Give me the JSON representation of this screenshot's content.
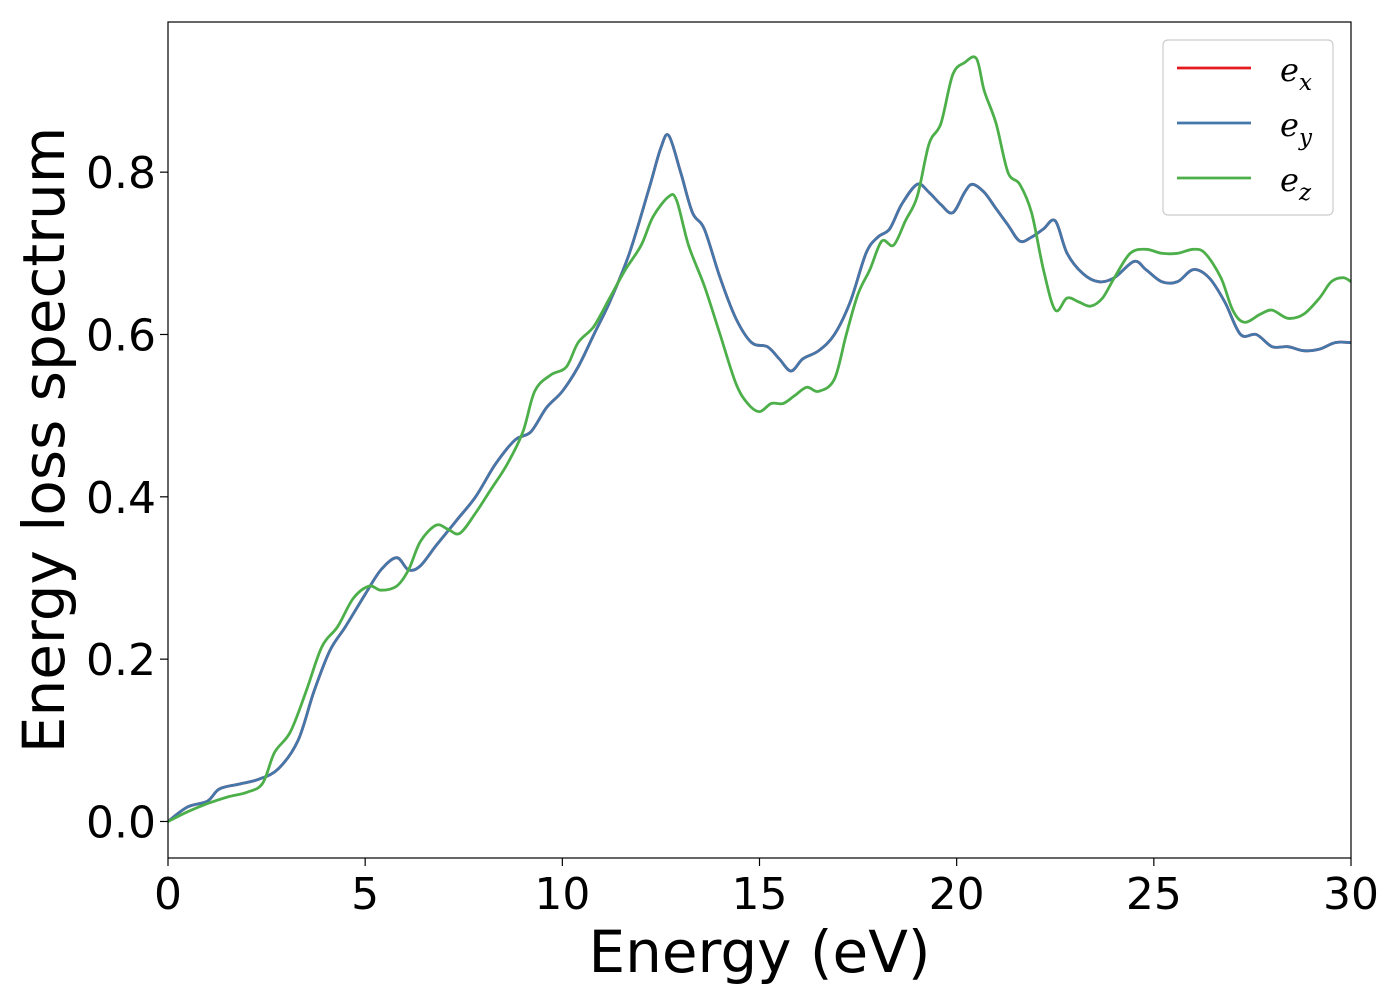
{
  "chart_data": {
    "type": "line",
    "xlabel": "Energy (eV)",
    "ylabel": "Energy loss spectrum",
    "xlim": [
      0,
      30
    ],
    "ylim": [
      -0.045,
      0.985
    ],
    "xticks": [
      {
        "value": 0,
        "label": "0"
      },
      {
        "value": 5,
        "label": "5"
      },
      {
        "value": 10,
        "label": "10"
      },
      {
        "value": 15,
        "label": "15"
      },
      {
        "value": 20,
        "label": "20"
      },
      {
        "value": 25,
        "label": "25"
      },
      {
        "value": 30,
        "label": "30"
      }
    ],
    "yticks": [
      {
        "value": 0.0,
        "label": "0.0"
      },
      {
        "value": 0.2,
        "label": "0.2"
      },
      {
        "value": 0.4,
        "label": "0.4"
      },
      {
        "value": 0.6,
        "label": "0.6"
      },
      {
        "value": 0.8,
        "label": "0.8"
      }
    ],
    "grid": false,
    "legend_position": "top-right",
    "series": [
      {
        "name": "e_x",
        "symbol": "e",
        "subscript": "x",
        "color": "#e41a1c",
        "x": [
          0,
          0.5,
          1,
          1.3,
          1.8,
          2.3,
          2.8,
          3.3,
          3.7,
          4.1,
          4.5,
          5,
          5.4,
          5.8,
          6.1,
          6.4,
          6.8,
          7.3,
          7.8,
          8.3,
          8.8,
          9.2,
          9.6,
          10,
          10.4,
          10.8,
          11.2,
          11.7,
          12.2,
          12.5,
          12.7,
          13,
          13.3,
          13.6,
          14,
          14.4,
          14.8,
          15.2,
          15.5,
          15.8,
          16.1,
          16.5,
          16.9,
          17.3,
          17.7,
          18,
          18.3,
          18.6,
          19,
          19.3,
          19.6,
          19.9,
          20.2,
          20.4,
          20.7,
          21,
          21.3,
          21.6,
          21.9,
          22.2,
          22.5,
          22.8,
          23.2,
          23.6,
          24,
          24.5,
          24.8,
          25.2,
          25.6,
          26,
          26.4,
          26.8,
          27.2,
          27.6,
          28,
          28.4,
          28.8,
          29.2,
          29.6,
          30
        ],
        "y": [
          0,
          0.018,
          0.025,
          0.04,
          0.046,
          0.052,
          0.065,
          0.1,
          0.16,
          0.21,
          0.24,
          0.28,
          0.31,
          0.325,
          0.31,
          0.315,
          0.34,
          0.37,
          0.4,
          0.44,
          0.47,
          0.48,
          0.51,
          0.53,
          0.56,
          0.6,
          0.64,
          0.7,
          0.78,
          0.83,
          0.845,
          0.8,
          0.75,
          0.73,
          0.67,
          0.62,
          0.59,
          0.585,
          0.57,
          0.555,
          0.57,
          0.58,
          0.6,
          0.64,
          0.7,
          0.72,
          0.73,
          0.76,
          0.785,
          0.775,
          0.76,
          0.75,
          0.775,
          0.785,
          0.775,
          0.755,
          0.735,
          0.715,
          0.72,
          0.73,
          0.74,
          0.7,
          0.675,
          0.665,
          0.67,
          0.69,
          0.68,
          0.665,
          0.665,
          0.68,
          0.67,
          0.64,
          0.6,
          0.6,
          0.585,
          0.585,
          0.58,
          0.582,
          0.59,
          0.59
        ]
      },
      {
        "name": "e_y",
        "symbol": "e",
        "subscript": "y",
        "color": "#4477aa",
        "x": [
          0,
          0.5,
          1,
          1.3,
          1.8,
          2.3,
          2.8,
          3.3,
          3.7,
          4.1,
          4.5,
          5,
          5.4,
          5.8,
          6.1,
          6.4,
          6.8,
          7.3,
          7.8,
          8.3,
          8.8,
          9.2,
          9.6,
          10,
          10.4,
          10.8,
          11.2,
          11.7,
          12.2,
          12.5,
          12.7,
          13,
          13.3,
          13.6,
          14,
          14.4,
          14.8,
          15.2,
          15.5,
          15.8,
          16.1,
          16.5,
          16.9,
          17.3,
          17.7,
          18,
          18.3,
          18.6,
          19,
          19.3,
          19.6,
          19.9,
          20.2,
          20.4,
          20.7,
          21,
          21.3,
          21.6,
          21.9,
          22.2,
          22.5,
          22.8,
          23.2,
          23.6,
          24,
          24.5,
          24.8,
          25.2,
          25.6,
          26,
          26.4,
          26.8,
          27.2,
          27.6,
          28,
          28.4,
          28.8,
          29.2,
          29.6,
          30
        ],
        "y": [
          0,
          0.018,
          0.025,
          0.04,
          0.046,
          0.052,
          0.065,
          0.1,
          0.16,
          0.21,
          0.24,
          0.28,
          0.31,
          0.325,
          0.31,
          0.315,
          0.34,
          0.37,
          0.4,
          0.44,
          0.47,
          0.48,
          0.51,
          0.53,
          0.56,
          0.6,
          0.64,
          0.7,
          0.78,
          0.83,
          0.845,
          0.8,
          0.75,
          0.73,
          0.67,
          0.62,
          0.59,
          0.585,
          0.57,
          0.555,
          0.57,
          0.58,
          0.6,
          0.64,
          0.7,
          0.72,
          0.73,
          0.76,
          0.785,
          0.775,
          0.76,
          0.75,
          0.775,
          0.785,
          0.775,
          0.755,
          0.735,
          0.715,
          0.72,
          0.73,
          0.74,
          0.7,
          0.675,
          0.665,
          0.67,
          0.69,
          0.68,
          0.665,
          0.665,
          0.68,
          0.67,
          0.64,
          0.6,
          0.6,
          0.585,
          0.585,
          0.58,
          0.582,
          0.59,
          0.59
        ]
      },
      {
        "name": "e_z",
        "symbol": "e",
        "subscript": "z",
        "color": "#4daf4a",
        "x": [
          0,
          0.5,
          1,
          1.5,
          2,
          2.4,
          2.7,
          3.1,
          3.5,
          3.9,
          4.3,
          4.7,
          5.1,
          5.4,
          5.8,
          6.1,
          6.4,
          6.8,
          7.1,
          7.4,
          7.8,
          8.2,
          8.6,
          9,
          9.3,
          9.7,
          10.1,
          10.4,
          10.8,
          11.2,
          11.6,
          12,
          12.3,
          12.7,
          12.9,
          13.2,
          13.6,
          14,
          14.4,
          14.7,
          15,
          15.3,
          15.6,
          15.9,
          16.2,
          16.5,
          16.9,
          17.2,
          17.5,
          17.8,
          18.1,
          18.4,
          18.7,
          19,
          19.3,
          19.6,
          19.9,
          20.2,
          20.5,
          20.7,
          21,
          21.3,
          21.6,
          21.9,
          22.2,
          22.5,
          22.8,
          23.1,
          23.4,
          23.7,
          24,
          24.4,
          24.8,
          25.2,
          25.6,
          26,
          26.3,
          26.7,
          27,
          27.3,
          27.7,
          28,
          28.4,
          28.8,
          29.2,
          29.5,
          29.8,
          30
        ],
        "y": [
          0,
          0.012,
          0.022,
          0.03,
          0.036,
          0.047,
          0.085,
          0.11,
          0.16,
          0.215,
          0.24,
          0.275,
          0.29,
          0.285,
          0.29,
          0.31,
          0.345,
          0.365,
          0.36,
          0.355,
          0.38,
          0.41,
          0.44,
          0.48,
          0.53,
          0.55,
          0.56,
          0.59,
          0.61,
          0.645,
          0.68,
          0.71,
          0.745,
          0.77,
          0.765,
          0.71,
          0.66,
          0.6,
          0.54,
          0.515,
          0.505,
          0.515,
          0.515,
          0.525,
          0.535,
          0.53,
          0.545,
          0.6,
          0.65,
          0.68,
          0.715,
          0.71,
          0.74,
          0.77,
          0.835,
          0.86,
          0.92,
          0.935,
          0.94,
          0.9,
          0.86,
          0.8,
          0.785,
          0.75,
          0.68,
          0.63,
          0.645,
          0.64,
          0.635,
          0.645,
          0.67,
          0.7,
          0.705,
          0.7,
          0.7,
          0.705,
          0.7,
          0.67,
          0.63,
          0.615,
          0.625,
          0.63,
          0.62,
          0.625,
          0.645,
          0.665,
          0.67,
          0.665
        ]
      }
    ]
  }
}
